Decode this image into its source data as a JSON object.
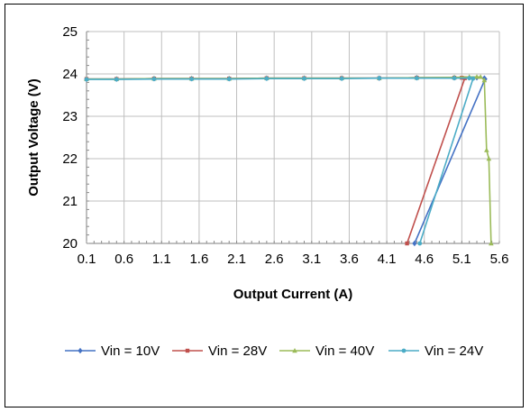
{
  "chart_data": {
    "type": "line",
    "xlabel": "Output Current (A)",
    "ylabel": "Output Voltage (V)",
    "xlim": [
      0.1,
      5.6
    ],
    "ylim": [
      20,
      25
    ],
    "x_ticks": [
      0.1,
      0.6,
      1.1,
      1.6,
      2.1,
      2.6,
      3.1,
      3.6,
      4.1,
      4.6,
      5.1,
      5.6
    ],
    "x_tick_labels": [
      "0.1",
      "0.6",
      "1.1",
      "1.6",
      "2.1",
      "2.6",
      "3.1",
      "3.6",
      "4.1",
      "4.6",
      "5.1",
      "5.6"
    ],
    "y_ticks": [
      20,
      21,
      22,
      23,
      24,
      25
    ],
    "y_tick_labels": [
      "20",
      "21",
      "22",
      "23",
      "24",
      "25"
    ],
    "grid": true,
    "legend": "bottom",
    "series": [
      {
        "name": "Vin = 10V",
        "color": "#4472C4",
        "marker": "diamond",
        "x": [
          0.1,
          0.5,
          1.0,
          1.5,
          2.0,
          2.5,
          3.0,
          3.5,
          4.0,
          4.5,
          5.0,
          5.2,
          5.3,
          5.4,
          5.41,
          4.47
        ],
        "y": [
          23.88,
          23.88,
          23.89,
          23.89,
          23.89,
          23.9,
          23.9,
          23.9,
          23.9,
          23.91,
          23.91,
          23.91,
          23.91,
          23.9,
          23.88,
          20.0
        ]
      },
      {
        "name": "Vin = 28V",
        "color": "#C0504D",
        "marker": "square",
        "x": [
          0.1,
          0.5,
          1.0,
          1.5,
          2.0,
          2.5,
          3.0,
          3.5,
          4.0,
          4.5,
          5.0,
          5.1,
          5.14,
          4.37
        ],
        "y": [
          23.88,
          23.88,
          23.89,
          23.89,
          23.89,
          23.9,
          23.9,
          23.9,
          23.9,
          23.91,
          23.91,
          23.91,
          23.9,
          20.0
        ]
      },
      {
        "name": "Vin = 40V",
        "color": "#9BBB59",
        "marker": "triangle",
        "x": [
          0.1,
          0.5,
          1.0,
          1.5,
          2.0,
          2.5,
          3.0,
          3.5,
          4.0,
          4.5,
          5.0,
          5.2,
          5.3,
          5.35,
          5.4,
          5.43,
          5.46,
          5.49
        ],
        "y": [
          23.88,
          23.88,
          23.89,
          23.89,
          23.89,
          23.9,
          23.9,
          23.9,
          23.9,
          23.91,
          23.92,
          23.93,
          23.93,
          23.93,
          23.85,
          22.2,
          22.0,
          20.0
        ]
      },
      {
        "name": "Vin = 24V",
        "color": "#4BACC6",
        "marker": "circle",
        "x": [
          0.1,
          0.5,
          1.0,
          1.5,
          2.0,
          2.5,
          3.0,
          3.5,
          4.0,
          4.5,
          5.0,
          5.2,
          5.25,
          4.54
        ],
        "y": [
          23.87,
          23.87,
          23.88,
          23.88,
          23.88,
          23.89,
          23.89,
          23.89,
          23.9,
          23.9,
          23.9,
          23.9,
          23.89,
          20.0
        ]
      }
    ]
  }
}
